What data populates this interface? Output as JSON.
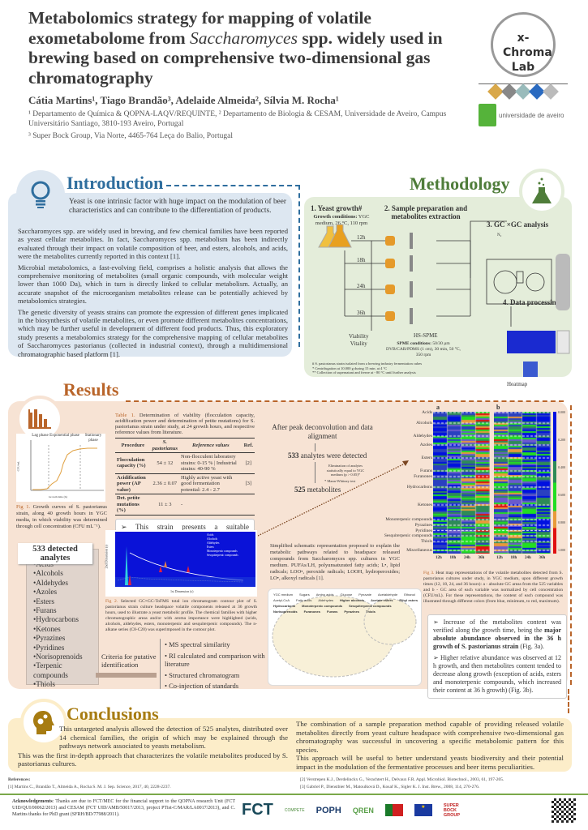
{
  "header": {
    "title_segments": [
      {
        "text": "Metabolomics strategy for mapping of volatile exometabolome from ",
        "italic": false
      },
      {
        "text": "Saccharomyces",
        "italic": true
      },
      {
        "text": " spp. widely used in brewing based on comprehensive two-dimensional gas chromatography",
        "italic": false
      }
    ],
    "authors": "Cátia Martins¹, Tiago Brandão³, Adelaide Almeida², Sílvia M. Rocha¹",
    "affiliation_1": "¹ Departamento de Química & QOPNA-LAQV/REQUINTE, ² Departamento de Biologia & CESAM, Universidade de Aveiro, Campus Universitário Santiago, 3810-193 Aveiro, Portugal",
    "affiliation_2": "³ Super Bock Group, Via Norte, 4465-764 Leça do Balio, Portugal",
    "lab_logo": "x-Chroma Lab",
    "university_logo": "universidade de aveiro"
  },
  "colors": {
    "intro": "#2f6e9e",
    "intro_bg": "#dde7f1",
    "method": "#4f7d3a",
    "method_bg": "#e4edda",
    "results": "#b9652a",
    "results_bg": "#f7e3d4",
    "conclusions": "#a77c12",
    "conclusions_bg": "#fcedc9"
  },
  "introduction": {
    "title": "Introduction",
    "icon": "lightbulb-icon",
    "lead": "Yeast is one intrinsic factor with huge impact on the modulation of beer characteristics and can contribute to the differentiation of products.",
    "paragraphs": [
      "Saccharomyces spp. are widely used in brewing, and few chemical families have been reported as yeast cellular metabolites. In fact, Saccharomyces spp. metabolism has been indirectly evaluated through their impact on volatile composition of beer, and esters, alcohols, and acids, were the metabolites currently reported in this context [1].",
      "Microbial metabolomics, a fast-evolving field, comprises a holistic analysis that allows the comprehensive monitoring of metabolites (small organic compounds, with molecular weight lower than 1000 Da), which in turn is directly linked to cellular metabolism. Actually, an accurate snapshot of the microorganism metabolites release can be potentially achieved by metabolomics strategies.",
      "The genetic diversity of yeasts strains can promote the expression of different genes implicated in the biosynthesis of volatile metabolites, or even promote different metabolites concentrations, which may be further useful in development of different food products. Thus, this exploratory study presents a metabolomics strategy for the comprehensive mapping of cellular metabolites of Saccharomyces pastorianus (collected in industrial context), through a multidimensional chromatographic based platform [1]."
    ]
  },
  "methodology": {
    "title": "Methodology",
    "icon": "flask-icon",
    "step1": "1. Yeast growth#",
    "growth_conditions_label": "Growth conditions:",
    "growth_conditions": "YGC medium, 26 °C, 110 rpm",
    "step2": "2. Sample preparation and metabolites extraction",
    "step3": "3. GC ×GC analysis",
    "n2": "N₂",
    "step4": "4. Data processing",
    "times": [
      "12h",
      "18h",
      "24h",
      "36h"
    ],
    "viability": "Viability",
    "vitality": "Vitality",
    "hs_spme": "HS-SPME",
    "spme_label": "SPME conditions:",
    "spme_conditions": "50/30 µm DVB/CAR/PDMS (1 cm), 30 min, 50 °C, 350 rpm",
    "heatmap": "Heatmap",
    "notes": [
      "# S. pastorianus strain isolated from a brewing industry fermentation cubes",
      "* Centrifugation at 10.000 g during 15 min. at 4 °C",
      "** Collection of supernatant and freeze at - 80 °C until further analysis"
    ]
  },
  "results": {
    "title": "Results",
    "icon": "bar-chart-icon",
    "fig1": {
      "phases": [
        "Lag phase",
        "Exponential phase",
        "Stationary phase"
      ],
      "xlabel": "Growth time (h)",
      "ylabel": "CFU/mL",
      "caption_label": "Fig 1.",
      "caption": " Growth curves of S. pastorianus strain, along 40 growth hours in YGC media, in which viability was determined through cell concentration (CFU mL⁻¹)."
    },
    "table1": {
      "caption_label": "Table 1.",
      "caption": " Determination of viability (flocculation capacity, acidification power and determination of petite mutations) for S. pastorianus strain under study, at 24 growth hours, and respective reference values from literature.",
      "headers": [
        "Procedure",
        "S. pastorianus",
        "Reference values",
        "Ref."
      ],
      "rows": [
        [
          "Flocculation capacity (%)",
          "54 ± 12",
          "Non-flocculent laboratory strains: 0-15 % | Industrial strains: 40-90 %",
          "[2]"
        ],
        [
          "Acidification power (AP value)",
          "2.36 ± 0.07",
          "Highly active yeast with good fermentation potential: 2.4 - 2.7",
          "[3]"
        ],
        [
          "Det. petite mutations (%)",
          "11 ± 3",
          "-",
          ""
        ]
      ]
    },
    "table_statement": "➢ This strain presents a suitable flocculation capacity and good fermentation potential.",
    "flow": {
      "step1": "After peak deconvolution and data alignment",
      "count1": "533",
      "step2": " analytes were detected",
      "elimination": "Elimination of analytes statistically equal to YGC medium (p > 0.05)*",
      "test_note": "* Mann-Whitney test",
      "count2": "525",
      "step3": " metabolites"
    },
    "analytes": {
      "title": "533 detected analytes",
      "items": [
        "Acids",
        "Alcohols",
        "Aldehydes",
        "Azoles",
        "Esters",
        "Furans",
        "Hydrocarbons",
        "Ketones",
        "Pyrazines",
        "Pyridines",
        "Norisoprenoids",
        "Terpenic compounds",
        "Thiols"
      ]
    },
    "fig2": {
      "legend": [
        "Acids",
        "Alcohols",
        "Aldehydes",
        "Esters",
        "Monoterpenic compounds",
        "Sesquiterpenic compounds"
      ],
      "xlabel": "1st Dimension (s)",
      "ylabel": "2nd Dimension (s)",
      "caption_label": "Fig 2.",
      "caption": " Selected GC×GC-ToFMS total ion chromatogram contour plot of S. pastorianus strain culture headspace volatile components released at 36 growth hours, used to illustrate a yeast metabolic profile. The chemical families with higher chromatographic areas and/or with aroma importance were highlighted (acids, alcohols, aldehydes, esters, monoterpenic and sesquiterpenic compounds). The n-alkane series (C8-C20) was superimposed in the contour plot."
    },
    "criteria_label": "Criteria for putative identification",
    "criteria": [
      "• MS spectral similarity",
      "• RI calculated and comparison with literature",
      "• Structured chromatogram",
      "• Co-injection of standards"
    ],
    "pathway_caption": "Simplified schematic representation proposed to explain the metabolic pathways related to headspace released compounds from Saccharomyces spp. cultures in YGC medium. PUFAs/LH, polyunsaturated fatty acids; L•, lipid radicals; LOO•, peroxide radicals; LOOH, hydroperoxides; LO•, alkoxyl radicals [1].",
    "pathway_labels": [
      "YGC medium",
      "Sugars",
      "Amino acids",
      "Glucose",
      "Pyruvate",
      "Acetaldehyde",
      "Ethanol",
      "Acetyl-CoA",
      "Fatty acids",
      "Aldehydes",
      "Higher alcohols",
      "Acetate esters",
      "Ethyl esters",
      "Hydrocarbons",
      "Monoterpenic compounds",
      "Sesquiterpenic compounds",
      "Norisoprenoids",
      "Furanones",
      "Furans",
      "Pyrazines",
      "Thiols"
    ],
    "heatmap": {
      "panels": [
        "a",
        "b"
      ],
      "families": [
        "Acids",
        "Alcohols",
        "Aldehydes",
        "Azoles",
        "Esters",
        "Furans",
        "Furanones",
        "Hydrocarbons",
        "Ketones",
        "Monoterpenic compounds",
        "Pyrazines",
        "Pyridines",
        "Sesquiterpenic compounds",
        "Thiols",
        "Miscellaneous"
      ],
      "times": [
        "12h",
        "18h",
        "24h",
        "36h"
      ],
      "scale": [
        "0.000",
        "0.200",
        "0.400",
        "0.600",
        "0.800",
        "1.000"
      ],
      "scale_colors": [
        "#0010e0",
        "#2e8b57",
        "#22dd22",
        "#e89a3a",
        "#e01010"
      ]
    },
    "fig3": {
      "caption_label": "Fig 3.",
      "caption": " Heat map representations of the volatile metabolites detected from S. pastorianus cultures under study, in YGC medium, upon different growth times (12, 18, 24, and 36 hours): a - absolute GC areas from the 525 variables and b - GC area of each variable was normalized by cell concentration (CFU/mL). For these representations, the content of each compound was illustrated through different colors (from blue, minimum, to red, maximum)."
    },
    "statement1_a": "➢ Increase of the metabolites content was verified along the growth time, being the ",
    "statement1_b": "major absolute abundance observed in the 36 h growth of S. pastorianus strain",
    "statement1_c": " (Fig. 3a).",
    "statement2": "➢ Higher relative abundance was observed at 12 h growth, and then metabolites content tended to decrease along growth (exception of acids, esters and monoterpenic compounds, which increased their content at 36 h growth) (Fig. 3b)."
  },
  "conclusions": {
    "title": "Conclusions",
    "icon": "head-gears-icon",
    "left": [
      "This untargeted analysis allowed the detection of 525 analytes, distributed over 14 chemical families, the origin of which may be explained through the pathways network associated to yeasts metabolism.",
      "This was the first in-depth approach that characterizes the volatile metabolites produced by S. pastorianus cultures."
    ],
    "right": [
      "The combination of a sample preparation method capable of providing released volatile metabolites directly from yeast culture headspace with comprehensive two-dimensional gas chromatography was successful in uncovering a specific metabolomic pattern for this species.",
      "This approach will be useful to better understand yeasts biodiversity and their potential impact in the modulation of the fermentative processes and beer items peculiarities."
    ]
  },
  "references": {
    "title": "References:",
    "items": [
      "[1] Martins C., Brandão T., Almeida A., Rocha S. M. J. Sep. Science, 2017, 40, 2228-2237.",
      "[2] Verstrepen K.J., Derdelinckx G., Verachtert H., Delvaux F.R. Appl. Microbiol. Biotechnol., 2003, 61, 197-205.",
      "[3] Gabriel P., Dienstbier M., Matoulková D., Kosař K., Sigler K. J. Inst. Brew., 2008, 114, 270-276."
    ]
  },
  "acknowledgements": {
    "label": "Acknowledgements",
    "text": ": Thanks are due to FCT/MEC for the financial support to the QOPNA research Unit (FCT UID/QUI/00062/2013) and CESAM (FCT UID/AMB/50017/2013, project PTist-C/MAR/LA0017/2013), and C. Martins thanks for PhD grant (SFRH/BD/77988/2011).",
    "logos": [
      "FCT",
      "COMPETE",
      "POPH",
      "QREN",
      "República Portuguesa",
      "União Europeia",
      "SUPER BOCK GROUP"
    ]
  }
}
